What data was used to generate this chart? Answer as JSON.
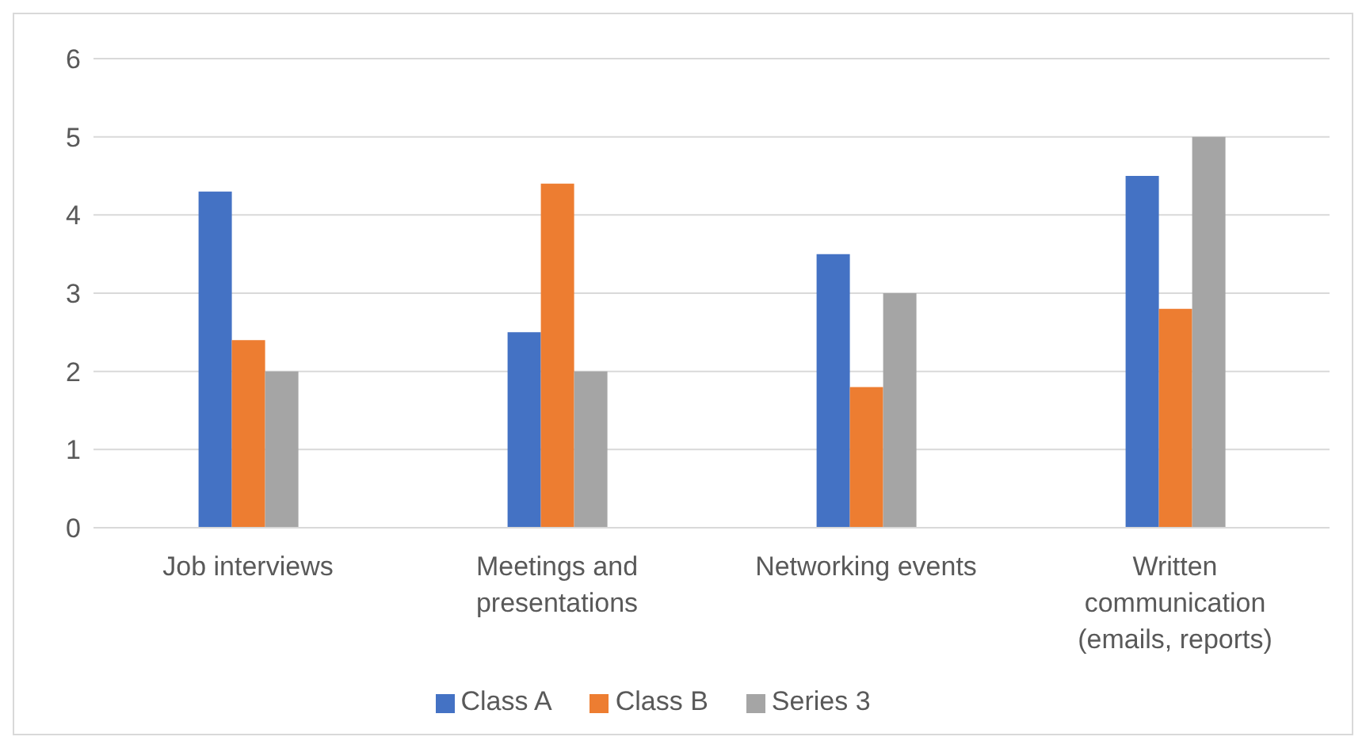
{
  "chart_data": {
    "type": "bar",
    "categories": [
      "Job interviews",
      "Meetings and presentations",
      "Networking events",
      "Written communication (emails, reports)"
    ],
    "series": [
      {
        "name": "Class A",
        "color": "#4472c4",
        "values": [
          4.3,
          2.5,
          3.5,
          4.5
        ]
      },
      {
        "name": "Class B",
        "color": "#ed7d31",
        "values": [
          2.4,
          4.4,
          1.8,
          2.8
        ]
      },
      {
        "name": "Series 3",
        "color": "#a5a5a5",
        "values": [
          2,
          2,
          3,
          5
        ]
      }
    ],
    "ylim": [
      0,
      6
    ],
    "yticks": [
      0,
      1,
      2,
      3,
      4,
      5,
      6
    ],
    "grid": "y",
    "legend": "bottom"
  }
}
